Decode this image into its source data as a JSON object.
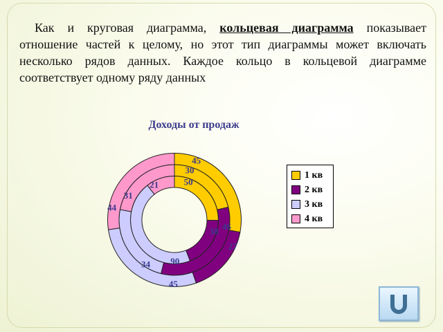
{
  "intro": {
    "before": "Как и круговая диаграмма, ",
    "term": "кольцевая диаграмма",
    "after": " показывает отношение частей к целому, но этот тип диаграммы может включать несколько рядов данных. Каждое кольцо в кольцевой диаграмме соответствует одному ряду данных"
  },
  "chart_data": {
    "type": "donut",
    "title": "Доходы от продаж",
    "categories": [
      "1 кв",
      "2 кв",
      "3 кв",
      "4 кв"
    ],
    "colors": [
      "#ffcc00",
      "#800080",
      "#ccccff",
      "#ff99cc"
    ],
    "series": [
      {
        "values": [
          50,
          38,
          90,
          21
        ]
      },
      {
        "values": [
          30,
          46,
          34,
          31
        ]
      },
      {
        "values": [
          45,
          27,
          45,
          44
        ]
      }
    ],
    "legend_position": "right"
  },
  "nav": {
    "back_icon": "u-turn-icon"
  }
}
